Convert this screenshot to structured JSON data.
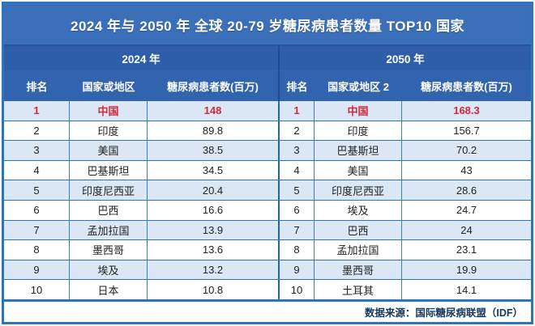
{
  "title": "2024 年与 2050 年 全球 20-79 岁糖尿病患者数量 TOP10 国家",
  "sections": {
    "left_year": "2024 年",
    "right_year": "2050 年"
  },
  "columns": {
    "left": [
      "排名",
      "国家或地区",
      "糖尿病患者数(百万)"
    ],
    "right": [
      "排名",
      "国家或地区 2",
      "糖尿病患者数(百万)"
    ]
  },
  "rows": [
    {
      "rank_2024": "1",
      "country_2024": "中国",
      "value_2024": "148",
      "rank_2050": "1",
      "country_2050": "中国",
      "value_2050": "168.3"
    },
    {
      "rank_2024": "2",
      "country_2024": "印度",
      "value_2024": "89.8",
      "rank_2050": "2",
      "country_2050": "印度",
      "value_2050": "156.7"
    },
    {
      "rank_2024": "3",
      "country_2024": "美国",
      "value_2024": "38.5",
      "rank_2050": "3",
      "country_2050": "巴基斯坦",
      "value_2050": "70.2"
    },
    {
      "rank_2024": "4",
      "country_2024": "巴基斯坦",
      "value_2024": "34.5",
      "rank_2050": "4",
      "country_2050": "美国",
      "value_2050": "43"
    },
    {
      "rank_2024": "5",
      "country_2024": "印度尼西亚",
      "value_2024": "20.4",
      "rank_2050": "5",
      "country_2050": "印度尼西亚",
      "value_2050": "28.6"
    },
    {
      "rank_2024": "6",
      "country_2024": "巴西",
      "value_2024": "16.6",
      "rank_2050": "6",
      "country_2050": "埃及",
      "value_2050": "24.7"
    },
    {
      "rank_2024": "7",
      "country_2024": "孟加拉国",
      "value_2024": "13.9",
      "rank_2050": "7",
      "country_2050": "巴西",
      "value_2050": "24"
    },
    {
      "rank_2024": "8",
      "country_2024": "墨西哥",
      "value_2024": "13.6",
      "rank_2050": "8",
      "country_2050": "孟加拉国",
      "value_2050": "23.1"
    },
    {
      "rank_2024": "9",
      "country_2024": "埃及",
      "value_2024": "13.2",
      "rank_2050": "9",
      "country_2050": "墨西哥",
      "value_2050": "19.9"
    },
    {
      "rank_2024": "10",
      "country_2024": "日本",
      "value_2024": "10.8",
      "rank_2050": "10",
      "country_2050": "土耳其",
      "value_2050": "14.1"
    }
  ],
  "footer": {
    "source": "数据来源：国际糖尿病联盟（IDF）"
  },
  "colors": {
    "title_blue": "#3C6FB9",
    "year_blue": "#2F5EA9",
    "header_blue": "#3263AE",
    "row_alt_blue": "#DCE7F5",
    "border_blue": "#2E75B6",
    "highlight_red": "#D3293A",
    "footer_text_navy": "#17375E"
  },
  "chart_data": {
    "type": "table",
    "title": "2024 年与 2050 年 全球 20-79 岁糖尿病患者数量 TOP10 国家",
    "series": [
      {
        "name": "2024 年 糖尿病患者数(百万)",
        "categories": [
          "中国",
          "印度",
          "美国",
          "巴基斯坦",
          "印度尼西亚",
          "巴西",
          "孟加拉国",
          "墨西哥",
          "埃及",
          "日本"
        ],
        "values": [
          148,
          89.8,
          38.5,
          34.5,
          20.4,
          16.6,
          13.9,
          13.6,
          13.2,
          10.8
        ]
      },
      {
        "name": "2050 年 糖尿病患者数(百万)",
        "categories": [
          "中国",
          "印度",
          "巴基斯坦",
          "美国",
          "印度尼西亚",
          "埃及",
          "巴西",
          "孟加拉国",
          "墨西哥",
          "土耳其"
        ],
        "values": [
          168.3,
          156.7,
          70.2,
          43,
          28.6,
          24.7,
          24,
          23.1,
          19.9,
          14.1
        ]
      }
    ],
    "source": "数据来源：国际糖尿病联盟（IDF）"
  }
}
